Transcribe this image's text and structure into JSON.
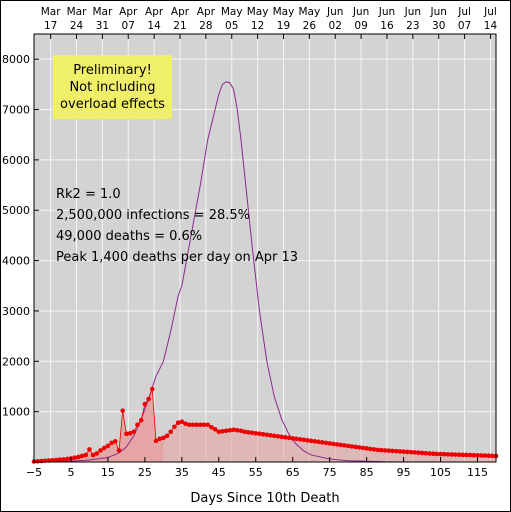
{
  "chart_data": {
    "type": "line",
    "xlabel": "Days Since 10th Death",
    "ylabel": "",
    "xlim": [
      -5,
      120
    ],
    "ylim": [
      0,
      8500
    ],
    "grid": true,
    "x_ticks": [
      -5,
      5,
      15,
      25,
      35,
      45,
      55,
      65,
      75,
      85,
      95,
      105,
      115
    ],
    "x_tick_labels": [
      "−5",
      "5",
      "15",
      "25",
      "35",
      "45",
      "55",
      "65",
      "75",
      "85",
      "95",
      "105",
      "115"
    ],
    "y_ticks": [
      1000,
      2000,
      3000,
      4000,
      5000,
      6000,
      7000,
      8000
    ],
    "y_tick_labels": [
      "1000",
      "2000",
      "3000",
      "4000",
      "5000",
      "6000",
      "7000",
      "8000"
    ],
    "top_axis": [
      {
        "x": -0.5,
        "month": "Mar",
        "day": "17"
      },
      {
        "x": 6.5,
        "month": "Mar",
        "day": "24"
      },
      {
        "x": 13.5,
        "month": "Mar",
        "day": "31"
      },
      {
        "x": 20.5,
        "month": "Apr",
        "day": "07"
      },
      {
        "x": 27.5,
        "month": "Apr",
        "day": "14"
      },
      {
        "x": 34.5,
        "month": "Apr",
        "day": "21"
      },
      {
        "x": 41.5,
        "month": "Apr",
        "day": "28"
      },
      {
        "x": 48.5,
        "month": "May",
        "day": "05"
      },
      {
        "x": 55.5,
        "month": "May",
        "day": "12"
      },
      {
        "x": 62.5,
        "month": "May",
        "day": "19"
      },
      {
        "x": 69.5,
        "month": "May",
        "day": "26"
      },
      {
        "x": 76.5,
        "month": "Jun",
        "day": "02"
      },
      {
        "x": 83.5,
        "month": "Jun",
        "day": "09"
      },
      {
        "x": 90.5,
        "month": "Jun",
        "day": "16"
      },
      {
        "x": 97.5,
        "month": "Jun",
        "day": "23"
      },
      {
        "x": 104.5,
        "month": "Jun",
        "day": "30"
      },
      {
        "x": 111.5,
        "month": "Jul",
        "day": "07"
      },
      {
        "x": 118.5,
        "month": "Jul",
        "day": "14"
      }
    ],
    "annotation_box": {
      "lines": [
        "Preliminary!",
        "Not including",
        "overload effects"
      ],
      "color": "#f0ef6a"
    },
    "annotations": [
      "Rk2 = 1.0",
      "2,500,000 infections = 28.5%",
      "49,000 deaths = 0.6%",
      "Peak 1,400 deaths per day on Apr 13"
    ],
    "colors": {
      "plot_bg": "#d3d3d3",
      "grid": "#f4f4f4",
      "model_line": "#8b2a8b",
      "points": "#ee0000",
      "fill": "#e8a0a0"
    },
    "series": [
      {
        "kind": "model",
        "x": [
          -5,
          0,
          5,
          10,
          15,
          18,
          20,
          22,
          24,
          26,
          28,
          30,
          32,
          33,
          34,
          35,
          36,
          38,
          40,
          42,
          44,
          45,
          46,
          47,
          48,
          49,
          50,
          51,
          52,
          53,
          54,
          56,
          58,
          60,
          62,
          64,
          66,
          68,
          70,
          75,
          80,
          90,
          100,
          110,
          120
        ],
        "y": [
          0,
          5,
          15,
          40,
          90,
          180,
          300,
          520,
          850,
          1250,
          1700,
          2000,
          2600,
          2950,
          3300,
          3500,
          3900,
          4700,
          5500,
          6400,
          7000,
          7300,
          7500,
          7550,
          7530,
          7400,
          7000,
          6400,
          5700,
          5000,
          4300,
          3000,
          2000,
          1300,
          850,
          550,
          350,
          220,
          140,
          60,
          25,
          5,
          2,
          1,
          0
        ]
      },
      {
        "kind": "observed",
        "x": [
          -5,
          -4,
          -3,
          -2,
          -1,
          0,
          1,
          2,
          3,
          4,
          5,
          6,
          7,
          8,
          9,
          10,
          11,
          12,
          13,
          14,
          15,
          16,
          17,
          18,
          19,
          20,
          21,
          22,
          23,
          24,
          25,
          26,
          27,
          28,
          29,
          30,
          31,
          32,
          33,
          34,
          35,
          36,
          37,
          38,
          39,
          40,
          41,
          42,
          43,
          44,
          45,
          46,
          47,
          48,
          49,
          50,
          51,
          52,
          53,
          54,
          55,
          56,
          57,
          58,
          59,
          60,
          61,
          62,
          63,
          64,
          65,
          66,
          67,
          68,
          69,
          70,
          71,
          72,
          73,
          74,
          75,
          76,
          77,
          78,
          79,
          80,
          81,
          82,
          83,
          84,
          85,
          86,
          87,
          88,
          89,
          90,
          91,
          92,
          93,
          94,
          95,
          96,
          97,
          98,
          99,
          100,
          101,
          102,
          103,
          104,
          105,
          106,
          107,
          108,
          109,
          110,
          111,
          112,
          113,
          114,
          115,
          116,
          117,
          118,
          119,
          120
        ],
        "y": [
          10,
          15,
          20,
          25,
          30,
          35,
          40,
          45,
          50,
          60,
          70,
          85,
          100,
          120,
          140,
          250,
          140,
          170,
          230,
          280,
          320,
          380,
          410,
          230,
          1020,
          560,
          570,
          600,
          740,
          830,
          1150,
          1250,
          1450,
          420,
          460,
          480,
          520,
          600,
          700,
          780,
          800,
          760,
          740,
          740,
          740,
          740,
          740,
          740,
          690,
          650,
          600,
          610,
          620,
          630,
          640,
          630,
          620,
          600,
          590,
          580,
          570,
          560,
          550,
          540,
          530,
          520,
          510,
          500,
          490,
          480,
          470,
          460,
          450,
          440,
          430,
          420,
          410,
          400,
          390,
          380,
          370,
          360,
          350,
          340,
          330,
          320,
          310,
          300,
          290,
          280,
          270,
          260,
          250,
          240,
          235,
          230,
          225,
          220,
          215,
          210,
          205,
          200,
          195,
          190,
          185,
          180,
          175,
          170,
          165,
          160,
          158,
          155,
          152,
          150,
          148,
          145,
          142,
          140,
          138,
          135,
          132,
          130,
          128,
          125,
          122,
          120
        ]
      }
    ]
  }
}
